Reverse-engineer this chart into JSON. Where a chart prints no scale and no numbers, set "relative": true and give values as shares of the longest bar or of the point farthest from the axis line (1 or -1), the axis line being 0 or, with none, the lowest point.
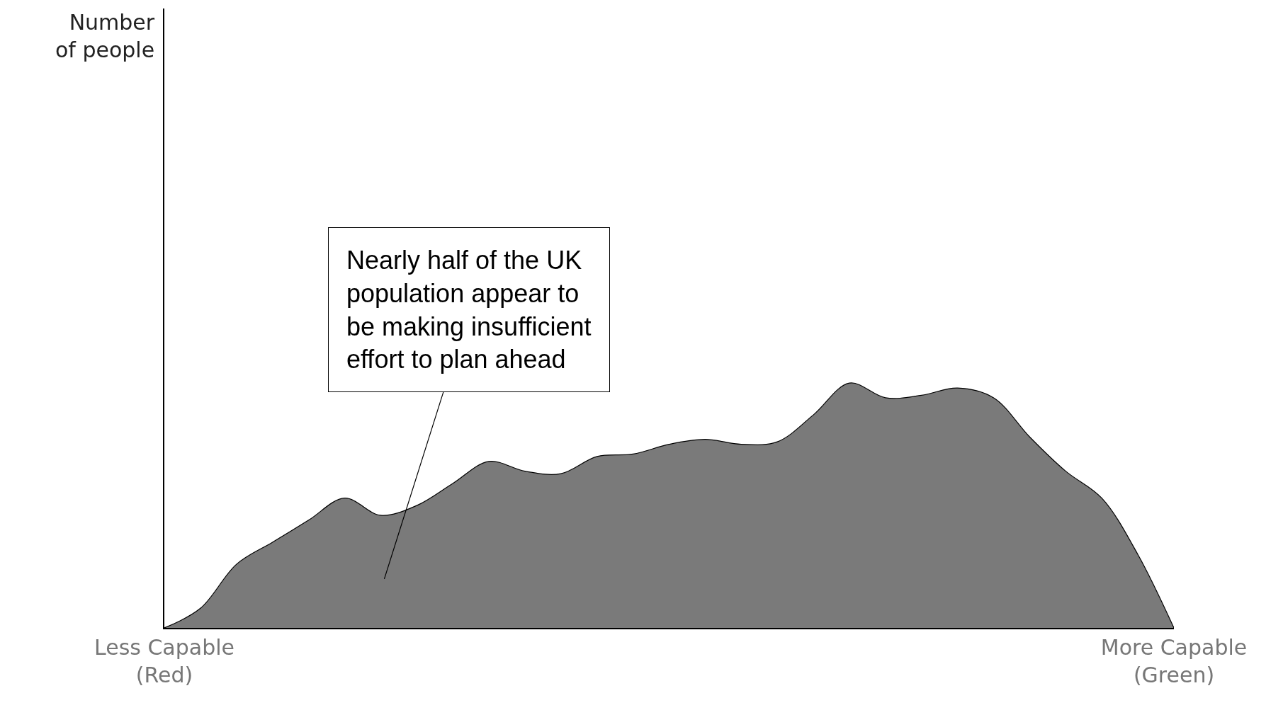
{
  "chart_data": {
    "type": "area",
    "relative": true,
    "categories": [
      "Less Capable (Red)",
      null,
      null,
      null,
      null,
      null,
      null,
      null,
      null,
      null,
      null,
      null,
      null,
      null,
      null,
      null,
      null,
      null,
      null,
      null,
      null,
      null,
      null,
      null,
      null,
      null,
      null,
      null,
      "More Capable (Green)"
    ],
    "values": [
      0,
      0.08,
      0.26,
      0.35,
      0.44,
      0.53,
      0.46,
      0.5,
      0.59,
      0.68,
      0.64,
      0.63,
      0.7,
      0.71,
      0.75,
      0.77,
      0.75,
      0.76,
      0.87,
      1,
      0.94,
      0.95,
      0.98,
      0.94,
      0.78,
      0.64,
      0.53,
      0.3,
      0
    ],
    "color": "#7a7a7a",
    "annotations": [
      "Number of people",
      "Nearly half of the UK population appear to be making insufficient effort to plan ahead"
    ],
    "legend": false
  }
}
